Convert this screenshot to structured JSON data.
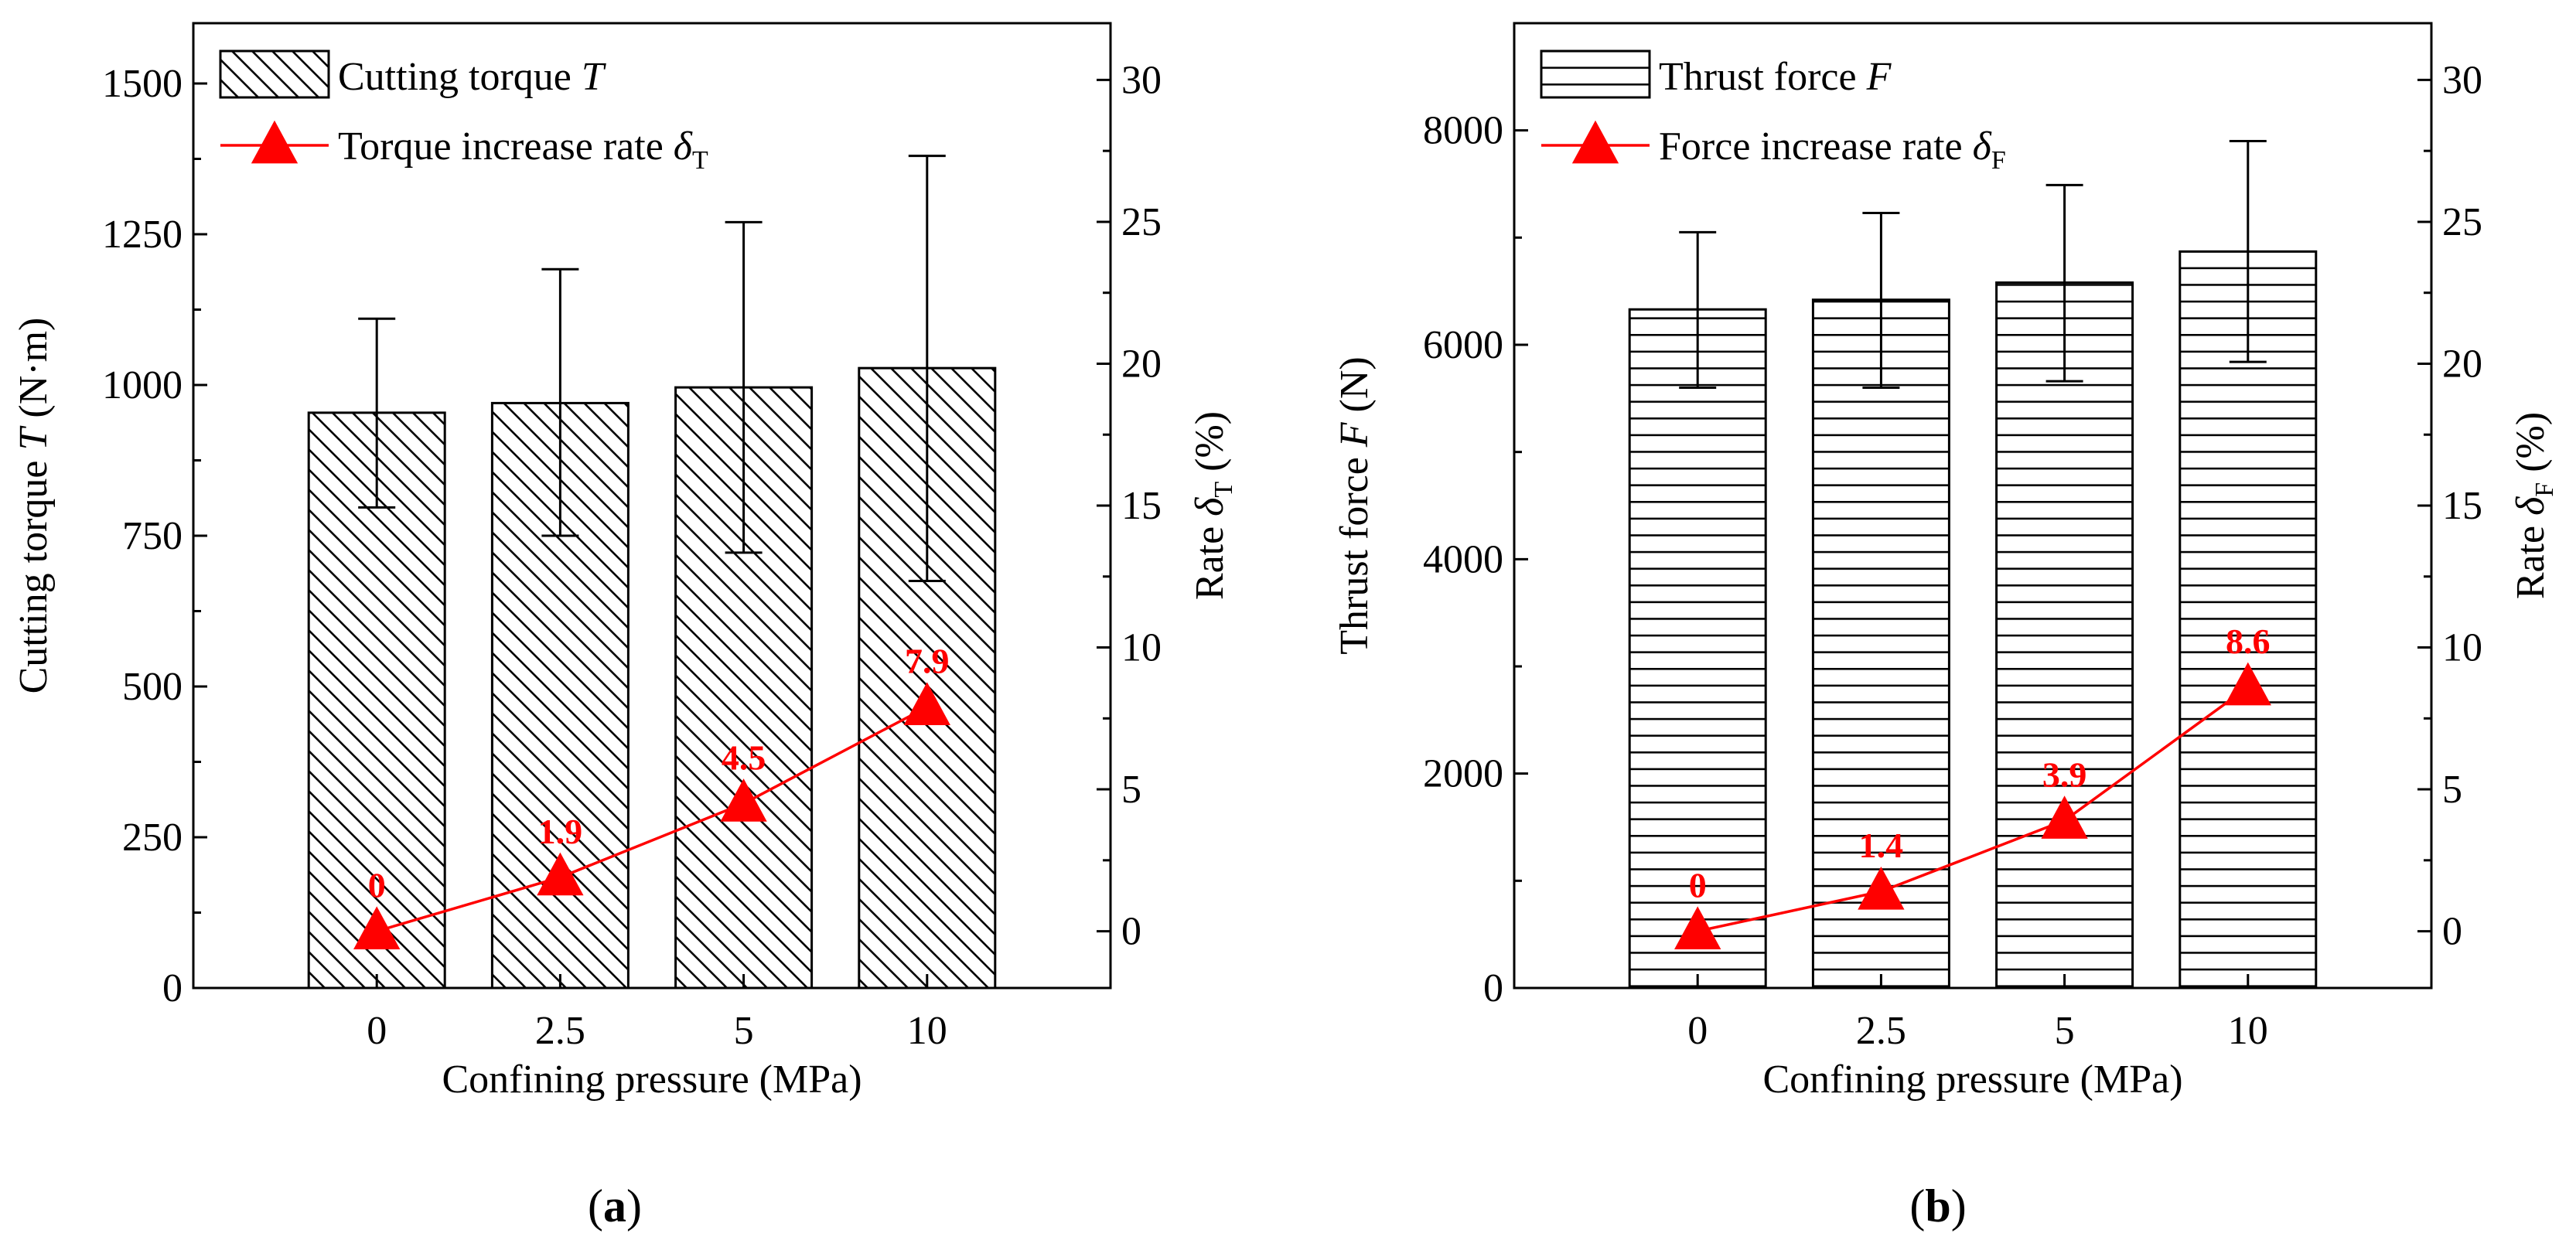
{
  "colors": {
    "line": "#ff0000",
    "label": "#ff0000",
    "axis": "#000000",
    "bar_fill": "#ffffff"
  },
  "chart_data": [
    {
      "type": "bar",
      "panel_label": "a",
      "categories": [
        "0",
        "2.5",
        "5",
        "10"
      ],
      "xlabel": "Confining pressure (MPa)",
      "ylabel_left": {
        "main": "Cutting torque ",
        "italic": "T",
        "rest": " (N·m)"
      },
      "ylabel_right": {
        "main": "Rate ",
        "italic": "δ",
        "sub": "T",
        "rest": " (%)"
      },
      "ylim_left": [
        0,
        1600
      ],
      "yticks_left": [
        0,
        250,
        500,
        750,
        1000,
        1250,
        1500
      ],
      "ylim_right": [
        -2,
        32
      ],
      "yticks_right": [
        0,
        5,
        10,
        15,
        20,
        25,
        30
      ],
      "bar_pattern": "diagonal",
      "legend_position": "top-left",
      "series": [
        {
          "name": "Cutting torque",
          "name_italic": "T",
          "kind": "bar",
          "axis": "left",
          "values": [
            954,
            970,
            996,
            1028
          ],
          "err_low": [
            797,
            750,
            722,
            675
          ],
          "err_high": [
            1110,
            1192,
            1270,
            1380
          ]
        },
        {
          "name": "Torque increase rate",
          "name_italic": "δ",
          "name_sub": "T",
          "kind": "line",
          "marker": "triangle",
          "axis": "right",
          "values": [
            0,
            1.9,
            4.5,
            7.9
          ],
          "labels": [
            "0",
            "1.9",
            "4.5",
            "7.9"
          ]
        }
      ]
    },
    {
      "type": "bar",
      "panel_label": "b",
      "categories": [
        "0",
        "2.5",
        "5",
        "10"
      ],
      "xlabel": "Confining pressure (MPa)",
      "ylabel_left": {
        "main": "Thrust force ",
        "italic": "F",
        "rest": " (N)"
      },
      "ylabel_right": {
        "main": "Rate ",
        "italic": "δ",
        "sub": "F",
        "rest": " (%)"
      },
      "ylim_left": [
        0,
        9000
      ],
      "yticks_left": [
        0,
        2000,
        4000,
        6000,
        8000
      ],
      "ylim_right": [
        -2,
        32
      ],
      "yticks_right": [
        0,
        5,
        10,
        15,
        20,
        25,
        30
      ],
      "bar_pattern": "horizontal",
      "legend_position": "top-left",
      "series": [
        {
          "name": "Thrust force",
          "name_italic": "F",
          "kind": "bar",
          "axis": "left",
          "values": [
            6330,
            6420,
            6580,
            6870
          ],
          "err_low": [
            5600,
            5600,
            5660,
            5840
          ],
          "err_high": [
            7050,
            7230,
            7490,
            7900
          ]
        },
        {
          "name": "Force increase rate",
          "name_italic": "δ",
          "name_sub": "F",
          "kind": "line",
          "marker": "triangle",
          "axis": "right",
          "values": [
            0,
            1.4,
            3.9,
            8.6
          ],
          "labels": [
            "0",
            "1.4",
            "3.9",
            "8.6"
          ]
        }
      ]
    }
  ]
}
